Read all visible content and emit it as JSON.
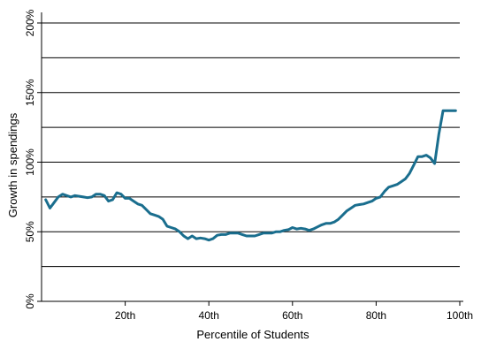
{
  "chart_data": {
    "type": "line",
    "title": "",
    "xlabel": "Percentile of Students",
    "ylabel": "Growth in spendings",
    "xlim": [
      0,
      100
    ],
    "ylim": [
      0,
      200
    ],
    "grid": true,
    "x_ticks": [
      {
        "value": 20,
        "label": "20th"
      },
      {
        "value": 40,
        "label": "40th"
      },
      {
        "value": 60,
        "label": "60th"
      },
      {
        "value": 80,
        "label": "80th"
      },
      {
        "value": 100,
        "label": "100th"
      }
    ],
    "y_ticks": [
      {
        "value": 0,
        "label": "0%"
      },
      {
        "value": 50,
        "label": "50%"
      },
      {
        "value": 100,
        "label": "100%"
      },
      {
        "value": 150,
        "label": "150%"
      },
      {
        "value": 200,
        "label": "200%"
      }
    ],
    "y_gridlines": [
      25,
      50,
      75,
      100,
      125,
      150,
      175,
      200
    ],
    "line_color": "#1a6e8e",
    "series": [
      {
        "x": [
          1,
          2,
          3,
          4,
          5,
          6,
          7,
          8,
          9,
          10,
          11,
          12,
          13,
          14,
          15,
          16,
          17,
          18,
          19,
          20,
          21,
          22,
          23,
          24,
          25,
          26,
          27,
          28,
          29,
          30,
          31,
          32,
          33,
          34,
          35,
          36,
          37,
          38,
          39,
          40,
          41,
          42,
          43,
          44,
          45,
          46,
          47,
          48,
          49,
          50,
          51,
          52,
          53,
          54,
          55,
          56,
          57,
          58,
          59,
          60,
          61,
          62,
          63,
          64,
          65,
          66,
          67,
          68,
          69,
          70,
          71,
          72,
          73,
          74,
          75,
          76,
          77,
          78,
          79,
          80,
          81,
          82,
          83,
          84,
          85,
          86,
          87,
          88,
          89,
          90,
          91,
          92,
          93,
          94,
          95,
          96,
          97,
          98,
          99
        ],
        "values": [
          73,
          67,
          71,
          75,
          77,
          76,
          75,
          76,
          75.5,
          75,
          74.5,
          75,
          77,
          77,
          76,
          72,
          73,
          78,
          77,
          74,
          74,
          72,
          70,
          69,
          66,
          63,
          62,
          61,
          59,
          54,
          53,
          52,
          50,
          47,
          45,
          47,
          45,
          45.5,
          45,
          44,
          45,
          47.5,
          48,
          48,
          49,
          49,
          49,
          48,
          47,
          47,
          47,
          48,
          49,
          49,
          49,
          50,
          50,
          51,
          51.5,
          53,
          52,
          52.5,
          52,
          51,
          52,
          53.5,
          55,
          56,
          56,
          57,
          59,
          62,
          65,
          67,
          69,
          69.5,
          70,
          71,
          72,
          74,
          75,
          79,
          82,
          83,
          84,
          86,
          88,
          92,
          98,
          104,
          104,
          105,
          103,
          99,
          120,
          137,
          137,
          137,
          137
        ]
      }
    ]
  }
}
